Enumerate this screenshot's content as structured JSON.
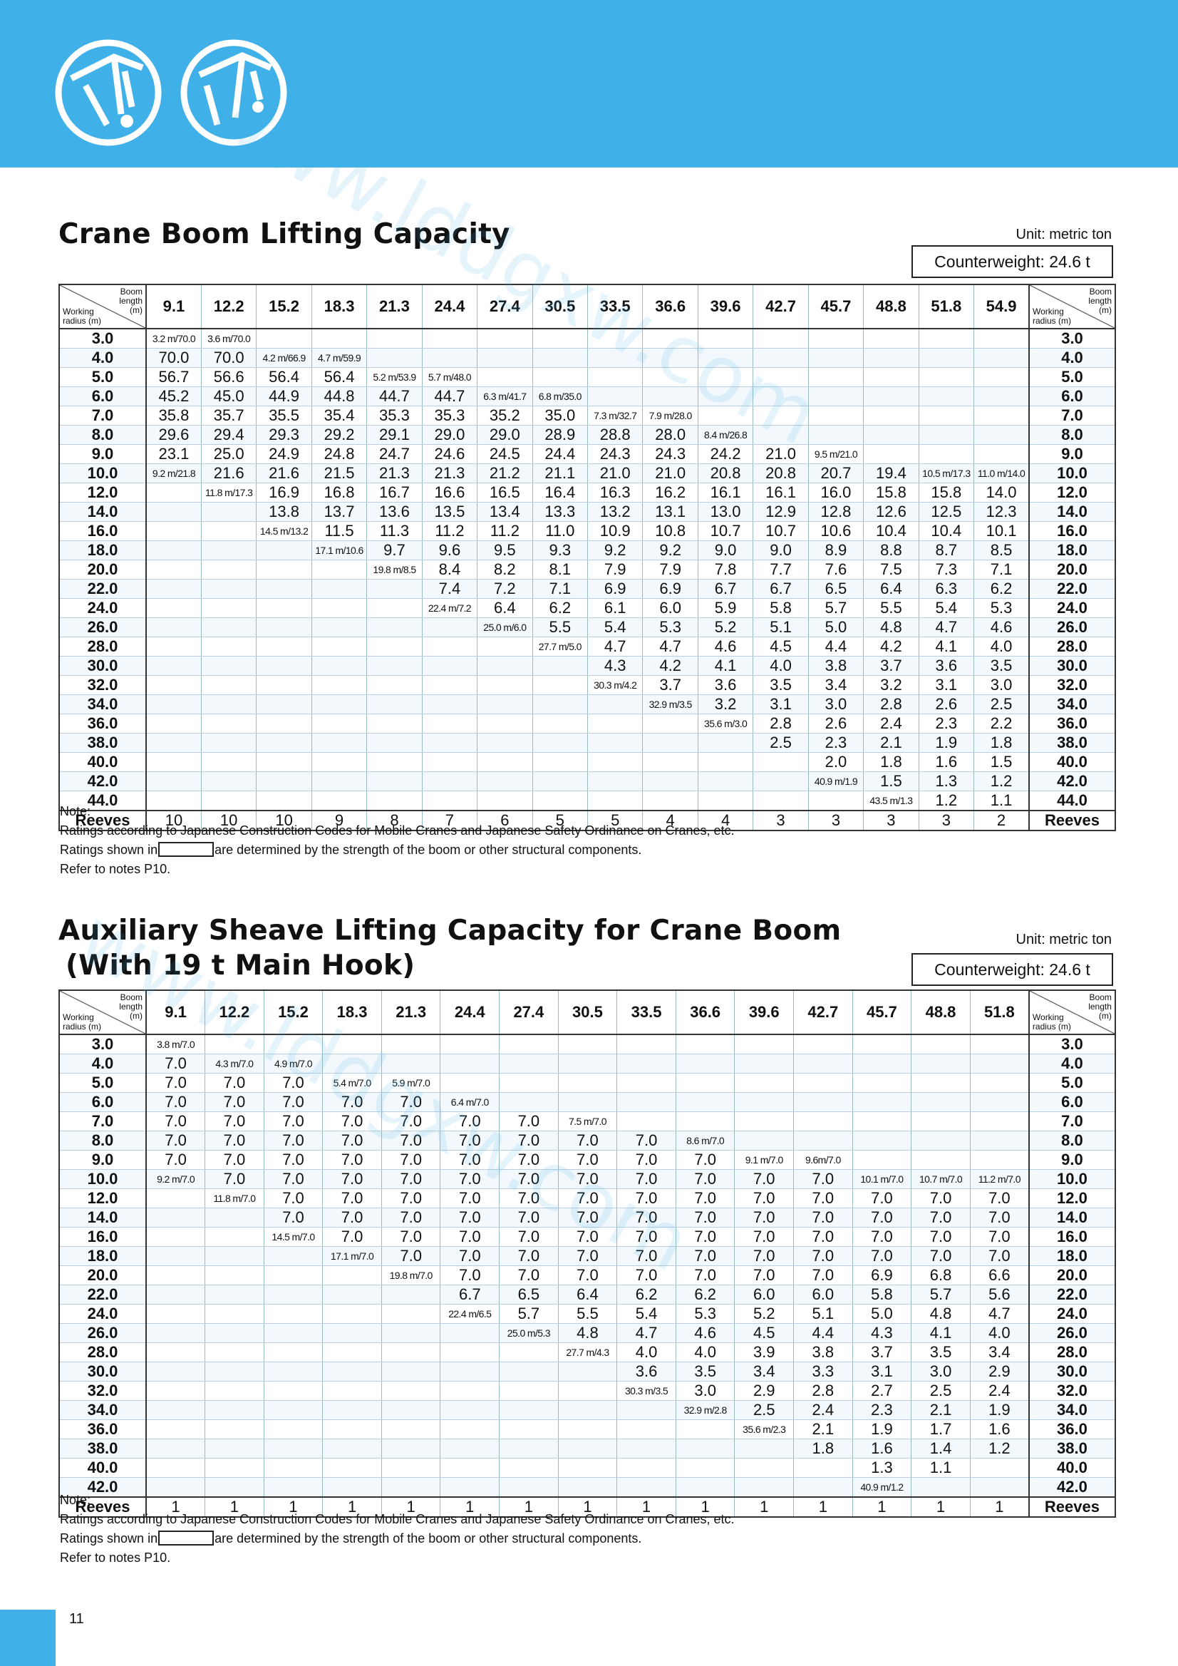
{
  "header": {
    "page_number": "11",
    "watermark": "www.lddgxw.com"
  },
  "section1": {
    "title": "Crane Boom Lifting Capacity",
    "unit": "Unit: metric ton",
    "counterweight": "Counterweight: 24.6 t",
    "corner": {
      "boom": "Boom length (m)",
      "radius": "Working radius (m)"
    },
    "columns": [
      "9.1",
      "12.2",
      "15.2",
      "18.3",
      "21.3",
      "24.4",
      "27.4",
      "30.5",
      "33.5",
      "36.6",
      "39.6",
      "42.7",
      "45.7",
      "48.8",
      "51.8",
      "54.9"
    ],
    "rows": [
      {
        "radius": "3.0",
        "cells": [
          "3.2 m/70.0",
          "3.6 m/70.0",
          null,
          null,
          null,
          null,
          null,
          null,
          null,
          null,
          null,
          null,
          null,
          null,
          null,
          null
        ]
      },
      {
        "radius": "4.0",
        "cells": [
          "70.0",
          "70.0",
          "4.2 m/66.9",
          "4.7 m/59.9",
          null,
          null,
          null,
          null,
          null,
          null,
          null,
          null,
          null,
          null,
          null,
          null
        ]
      },
      {
        "radius": "5.0",
        "cells": [
          "56.7",
          "56.6",
          "56.4",
          "56.4",
          "5.2 m/53.9",
          "5.7 m/48.0",
          null,
          null,
          null,
          null,
          null,
          null,
          null,
          null,
          null,
          null
        ]
      },
      {
        "radius": "6.0",
        "cells": [
          "45.2",
          "45.0",
          "44.9",
          "44.8",
          "44.7",
          "44.7",
          "6.3 m/41.7",
          "6.8 m/35.0",
          null,
          null,
          null,
          null,
          null,
          null,
          null,
          null
        ]
      },
      {
        "radius": "7.0",
        "cells": [
          "35.8",
          "35.7",
          "35.5",
          "35.4",
          "35.3",
          "35.3",
          "35.2",
          "35.0",
          "7.3 m/32.7",
          "7.9 m/28.0",
          null,
          null,
          null,
          null,
          null,
          null
        ]
      },
      {
        "radius": "8.0",
        "cells": [
          "29.6",
          "29.4",
          "29.3",
          "29.2",
          "29.1",
          "29.0",
          "29.0",
          "28.9",
          "28.8",
          "28.0",
          "8.4 m/26.8",
          null,
          null,
          null,
          null,
          null
        ]
      },
      {
        "radius": "9.0",
        "cells": [
          "23.1",
          "25.0",
          "24.9",
          "24.8",
          "24.7",
          "24.6",
          "24.5",
          "24.4",
          "24.3",
          "24.3",
          "24.2",
          "21.0",
          "9.5 m/21.0",
          null,
          null,
          null
        ]
      },
      {
        "radius": "10.0",
        "cells": [
          "9.2 m/21.8",
          "21.6",
          "21.6",
          "21.5",
          "21.3",
          "21.3",
          "21.2",
          "21.1",
          "21.0",
          "21.0",
          "20.8",
          "20.8",
          "20.7",
          "19.4",
          "10.5 m/17.3",
          "11.0 m/14.0"
        ]
      },
      {
        "radius": "12.0",
        "cells": [
          null,
          "11.8 m/17.3",
          "16.9",
          "16.8",
          "16.7",
          "16.6",
          "16.5",
          "16.4",
          "16.3",
          "16.2",
          "16.1",
          "16.1",
          "16.0",
          "15.8",
          "15.8",
          "14.0"
        ]
      },
      {
        "radius": "14.0",
        "cells": [
          null,
          null,
          "13.8",
          "13.7",
          "13.6",
          "13.5",
          "13.4",
          "13.3",
          "13.2",
          "13.1",
          "13.0",
          "12.9",
          "12.8",
          "12.6",
          "12.5",
          "12.3"
        ]
      },
      {
        "radius": "16.0",
        "cells": [
          null,
          null,
          "14.5 m/13.2",
          "11.5",
          "11.3",
          "11.2",
          "11.2",
          "11.0",
          "10.9",
          "10.8",
          "10.7",
          "10.7",
          "10.6",
          "10.4",
          "10.4",
          "10.1"
        ]
      },
      {
        "radius": "18.0",
        "cells": [
          null,
          null,
          null,
          "17.1 m/10.6",
          "9.7",
          "9.6",
          "9.5",
          "9.3",
          "9.2",
          "9.2",
          "9.0",
          "9.0",
          "8.9",
          "8.8",
          "8.7",
          "8.5"
        ]
      },
      {
        "radius": "20.0",
        "cells": [
          null,
          null,
          null,
          null,
          "19.8 m/8.5",
          "8.4",
          "8.2",
          "8.1",
          "7.9",
          "7.9",
          "7.8",
          "7.7",
          "7.6",
          "7.5",
          "7.3",
          "7.1"
        ]
      },
      {
        "radius": "22.0",
        "cells": [
          null,
          null,
          null,
          null,
          null,
          "7.4",
          "7.2",
          "7.1",
          "6.9",
          "6.9",
          "6.7",
          "6.7",
          "6.5",
          "6.4",
          "6.3",
          "6.2"
        ]
      },
      {
        "radius": "24.0",
        "cells": [
          null,
          null,
          null,
          null,
          null,
          "22.4 m/7.2",
          "6.4",
          "6.2",
          "6.1",
          "6.0",
          "5.9",
          "5.8",
          "5.7",
          "5.5",
          "5.4",
          "5.3"
        ]
      },
      {
        "radius": "26.0",
        "cells": [
          null,
          null,
          null,
          null,
          null,
          null,
          "25.0 m/6.0",
          "5.5",
          "5.4",
          "5.3",
          "5.2",
          "5.1",
          "5.0",
          "4.8",
          "4.7",
          "4.6"
        ]
      },
      {
        "radius": "28.0",
        "cells": [
          null,
          null,
          null,
          null,
          null,
          null,
          null,
          "27.7 m/5.0",
          "4.7",
          "4.7",
          "4.6",
          "4.5",
          "4.4",
          "4.2",
          "4.1",
          "4.0"
        ]
      },
      {
        "radius": "30.0",
        "cells": [
          null,
          null,
          null,
          null,
          null,
          null,
          null,
          null,
          "4.3",
          "4.2",
          "4.1",
          "4.0",
          "3.8",
          "3.7",
          "3.6",
          "3.5"
        ]
      },
      {
        "radius": "32.0",
        "cells": [
          null,
          null,
          null,
          null,
          null,
          null,
          null,
          null,
          "30.3 m/4.2",
          "3.7",
          "3.6",
          "3.5",
          "3.4",
          "3.2",
          "3.1",
          "3.0"
        ]
      },
      {
        "radius": "34.0",
        "cells": [
          null,
          null,
          null,
          null,
          null,
          null,
          null,
          null,
          null,
          "32.9 m/3.5",
          "3.2",
          "3.1",
          "3.0",
          "2.8",
          "2.6",
          "2.5"
        ]
      },
      {
        "radius": "36.0",
        "cells": [
          null,
          null,
          null,
          null,
          null,
          null,
          null,
          null,
          null,
          null,
          "35.6 m/3.0",
          "2.8",
          "2.6",
          "2.4",
          "2.3",
          "2.2"
        ]
      },
      {
        "radius": "38.0",
        "cells": [
          null,
          null,
          null,
          null,
          null,
          null,
          null,
          null,
          null,
          null,
          null,
          "2.5",
          "2.3",
          "2.1",
          "1.9",
          "1.8"
        ]
      },
      {
        "radius": "40.0",
        "cells": [
          null,
          null,
          null,
          null,
          null,
          null,
          null,
          null,
          null,
          null,
          null,
          null,
          "2.0",
          "1.8",
          "1.6",
          "1.5"
        ]
      },
      {
        "radius": "42.0",
        "cells": [
          null,
          null,
          null,
          null,
          null,
          null,
          null,
          null,
          null,
          null,
          null,
          null,
          "40.9 m/1.9",
          "1.5",
          "1.3",
          "1.2"
        ]
      },
      {
        "radius": "44.0",
        "cells": [
          null,
          null,
          null,
          null,
          null,
          null,
          null,
          null,
          null,
          null,
          null,
          null,
          null,
          "43.5 m/1.3",
          "1.2",
          "1.1"
        ]
      }
    ],
    "reeves": {
      "label": "Reeves",
      "values": [
        10,
        10,
        10,
        9,
        8,
        7,
        6,
        5,
        5,
        4,
        4,
        3,
        3,
        3,
        3,
        2
      ]
    },
    "notes": {
      "heading": "Note:",
      "line1": "Ratings according to Japanese Construction Codes for Mobile Cranes and Japanese Safety Ordinance on Cranes, etc.",
      "ratings_before": "Ratings shown in",
      "ratings_after": "are determined by the strength of the boom or other structural components.",
      "refer": "Refer to notes P10."
    }
  },
  "section2": {
    "title_line1": "Auxiliary Sheave Lifting Capacity for Crane Boom",
    "title_line2": "(With 19 t Main Hook)",
    "unit": "Unit: metric ton",
    "counterweight": "Counterweight: 24.6 t",
    "corner": {
      "boom": "Boom length (m)",
      "radius": "Working radius (m)"
    },
    "columns": [
      "9.1",
      "12.2",
      "15.2",
      "18.3",
      "21.3",
      "24.4",
      "27.4",
      "30.5",
      "33.5",
      "36.6",
      "39.6",
      "42.7",
      "45.7",
      "48.8",
      "51.8"
    ],
    "rows": [
      {
        "radius": "3.0",
        "cells": [
          "3.8 m/7.0",
          null,
          null,
          null,
          null,
          null,
          null,
          null,
          null,
          null,
          null,
          null,
          null,
          null,
          null
        ]
      },
      {
        "radius": "4.0",
        "cells": [
          "7.0",
          "4.3 m/7.0",
          "4.9 m/7.0",
          null,
          null,
          null,
          null,
          null,
          null,
          null,
          null,
          null,
          null,
          null,
          null
        ]
      },
      {
        "radius": "5.0",
        "cells": [
          "7.0",
          "7.0",
          "7.0",
          "5.4 m/7.0",
          "5.9 m/7.0",
          null,
          null,
          null,
          null,
          null,
          null,
          null,
          null,
          null,
          null
        ]
      },
      {
        "radius": "6.0",
        "cells": [
          "7.0",
          "7.0",
          "7.0",
          "7.0",
          "7.0",
          "6.4 m/7.0",
          null,
          null,
          null,
          null,
          null,
          null,
          null,
          null,
          null
        ]
      },
      {
        "radius": "7.0",
        "cells": [
          "7.0",
          "7.0",
          "7.0",
          "7.0",
          "7.0",
          "7.0",
          "7.0",
          "7.5 m/7.0",
          null,
          null,
          null,
          null,
          null,
          null,
          null
        ]
      },
      {
        "radius": "8.0",
        "cells": [
          "7.0",
          "7.0",
          "7.0",
          "7.0",
          "7.0",
          "7.0",
          "7.0",
          "7.0",
          "7.0",
          "8.6 m/7.0",
          null,
          null,
          null,
          null,
          null
        ]
      },
      {
        "radius": "9.0",
        "cells": [
          "7.0",
          "7.0",
          "7.0",
          "7.0",
          "7.0",
          "7.0",
          "7.0",
          "7.0",
          "7.0",
          "7.0",
          "9.1 m/7.0",
          "9.6m/7.0",
          null,
          null,
          null
        ]
      },
      {
        "radius": "10.0",
        "cells": [
          "9.2 m/7.0",
          "7.0",
          "7.0",
          "7.0",
          "7.0",
          "7.0",
          "7.0",
          "7.0",
          "7.0",
          "7.0",
          "7.0",
          "7.0",
          "10.1 m/7.0",
          "10.7 m/7.0",
          "11.2 m/7.0"
        ]
      },
      {
        "radius": "12.0",
        "cells": [
          null,
          "11.8 m/7.0",
          "7.0",
          "7.0",
          "7.0",
          "7.0",
          "7.0",
          "7.0",
          "7.0",
          "7.0",
          "7.0",
          "7.0",
          "7.0",
          "7.0",
          "7.0"
        ]
      },
      {
        "radius": "14.0",
        "cells": [
          null,
          null,
          "7.0",
          "7.0",
          "7.0",
          "7.0",
          "7.0",
          "7.0",
          "7.0",
          "7.0",
          "7.0",
          "7.0",
          "7.0",
          "7.0",
          "7.0"
        ]
      },
      {
        "radius": "16.0",
        "cells": [
          null,
          null,
          "14.5 m/7.0",
          "7.0",
          "7.0",
          "7.0",
          "7.0",
          "7.0",
          "7.0",
          "7.0",
          "7.0",
          "7.0",
          "7.0",
          "7.0",
          "7.0"
        ]
      },
      {
        "radius": "18.0",
        "cells": [
          null,
          null,
          null,
          "17.1 m/7.0",
          "7.0",
          "7.0",
          "7.0",
          "7.0",
          "7.0",
          "7.0",
          "7.0",
          "7.0",
          "7.0",
          "7.0",
          "7.0"
        ]
      },
      {
        "radius": "20.0",
        "cells": [
          null,
          null,
          null,
          null,
          "19.8 m/7.0",
          "7.0",
          "7.0",
          "7.0",
          "7.0",
          "7.0",
          "7.0",
          "7.0",
          "6.9",
          "6.8",
          "6.6"
        ]
      },
      {
        "radius": "22.0",
        "cells": [
          null,
          null,
          null,
          null,
          null,
          "6.7",
          "6.5",
          "6.4",
          "6.2",
          "6.2",
          "6.0",
          "6.0",
          "5.8",
          "5.7",
          "5.6"
        ]
      },
      {
        "radius": "24.0",
        "cells": [
          null,
          null,
          null,
          null,
          null,
          "22.4 m/6.5",
          "5.7",
          "5.5",
          "5.4",
          "5.3",
          "5.2",
          "5.1",
          "5.0",
          "4.8",
          "4.7"
        ]
      },
      {
        "radius": "26.0",
        "cells": [
          null,
          null,
          null,
          null,
          null,
          null,
          "25.0 m/5.3",
          "4.8",
          "4.7",
          "4.6",
          "4.5",
          "4.4",
          "4.3",
          "4.1",
          "4.0"
        ]
      },
      {
        "radius": "28.0",
        "cells": [
          null,
          null,
          null,
          null,
          null,
          null,
          null,
          "27.7 m/4.3",
          "4.0",
          "4.0",
          "3.9",
          "3.8",
          "3.7",
          "3.5",
          "3.4"
        ]
      },
      {
        "radius": "30.0",
        "cells": [
          null,
          null,
          null,
          null,
          null,
          null,
          null,
          null,
          "3.6",
          "3.5",
          "3.4",
          "3.3",
          "3.1",
          "3.0",
          "2.9"
        ]
      },
      {
        "radius": "32.0",
        "cells": [
          null,
          null,
          null,
          null,
          null,
          null,
          null,
          null,
          "30.3 m/3.5",
          "3.0",
          "2.9",
          "2.8",
          "2.7",
          "2.5",
          "2.4"
        ]
      },
      {
        "radius": "34.0",
        "cells": [
          null,
          null,
          null,
          null,
          null,
          null,
          null,
          null,
          null,
          "32.9 m/2.8",
          "2.5",
          "2.4",
          "2.3",
          "2.1",
          "1.9"
        ]
      },
      {
        "radius": "36.0",
        "cells": [
          null,
          null,
          null,
          null,
          null,
          null,
          null,
          null,
          null,
          null,
          "35.6 m/2.3",
          "2.1",
          "1.9",
          "1.7",
          "1.6"
        ]
      },
      {
        "radius": "38.0",
        "cells": [
          null,
          null,
          null,
          null,
          null,
          null,
          null,
          null,
          null,
          null,
          null,
          "1.8",
          "1.6",
          "1.4",
          "1.2"
        ]
      },
      {
        "radius": "40.0",
        "cells": [
          null,
          null,
          null,
          null,
          null,
          null,
          null,
          null,
          null,
          null,
          null,
          null,
          "1.3",
          "1.1",
          null
        ]
      },
      {
        "radius": "42.0",
        "cells": [
          null,
          null,
          null,
          null,
          null,
          null,
          null,
          null,
          null,
          null,
          null,
          null,
          "40.9 m/1.2",
          null,
          null
        ]
      }
    ],
    "reeves": {
      "label": "Reeves",
      "values": [
        1,
        1,
        1,
        1,
        1,
        1,
        1,
        1,
        1,
        1,
        1,
        1,
        1,
        1,
        1
      ]
    },
    "notes": {
      "heading": "Note:",
      "line1": "Ratings according to Japanese Construction Codes for Mobile Cranes and Japanese Safety Ordinance on Cranes, etc.",
      "ratings_before": "Ratings shown in",
      "ratings_after": "are determined by the strength of the boom or other structural components.",
      "refer": "Refer to notes P10."
    }
  }
}
